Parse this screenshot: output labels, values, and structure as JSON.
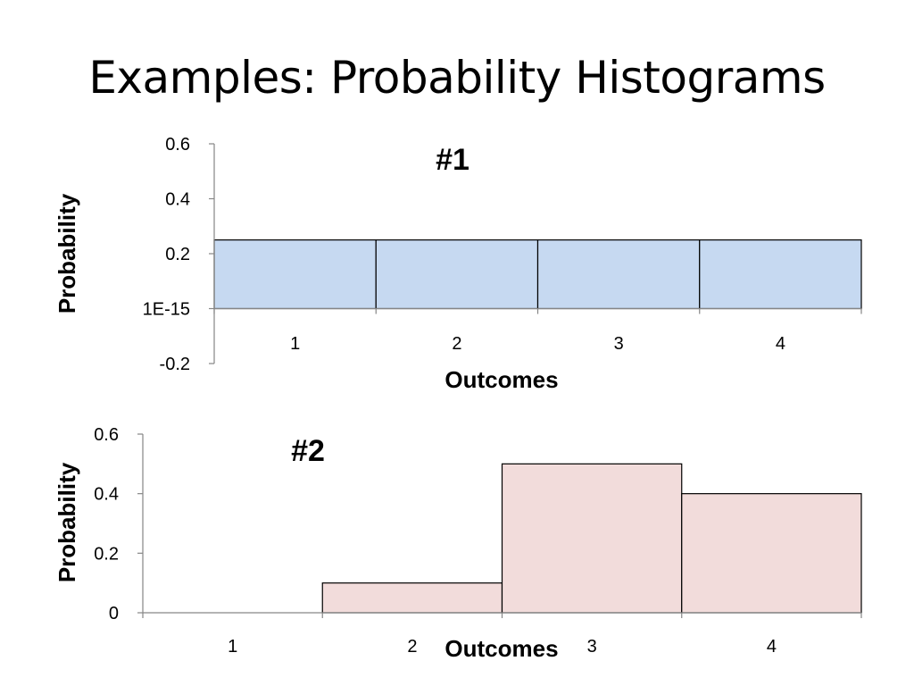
{
  "slide": {
    "title": "Examples: Probability Histograms"
  },
  "chart_data": [
    {
      "type": "bar",
      "title": "#1",
      "xlabel": "Outcomes",
      "ylabel": "Probability",
      "categories": [
        "1",
        "2",
        "3",
        "4"
      ],
      "values": [
        0.25,
        0.25,
        0.25,
        0.25
      ],
      "ylim": [
        -0.2,
        0.6
      ],
      "yticks": [
        -0.2,
        0,
        0.2,
        0.4,
        0.6
      ],
      "ytick_labels": [
        "-0.2",
        "1E-15",
        "0.2",
        "0.4",
        "0.6"
      ],
      "bar_color": "#c6d9f1",
      "grid": false,
      "legend": "none"
    },
    {
      "type": "bar",
      "title": "#2",
      "xlabel": "Outcomes",
      "ylabel": "Probability",
      "categories": [
        "1",
        "2",
        "3",
        "4"
      ],
      "values": [
        0,
        0.1,
        0.5,
        0.4
      ],
      "ylim": [
        0,
        0.6
      ],
      "yticks": [
        0,
        0.2,
        0.4,
        0.6
      ],
      "ytick_labels": [
        "0",
        "0.2",
        "0.4",
        "0.6"
      ],
      "bar_color": "#f2dcdb",
      "grid": false,
      "legend": "none"
    }
  ]
}
